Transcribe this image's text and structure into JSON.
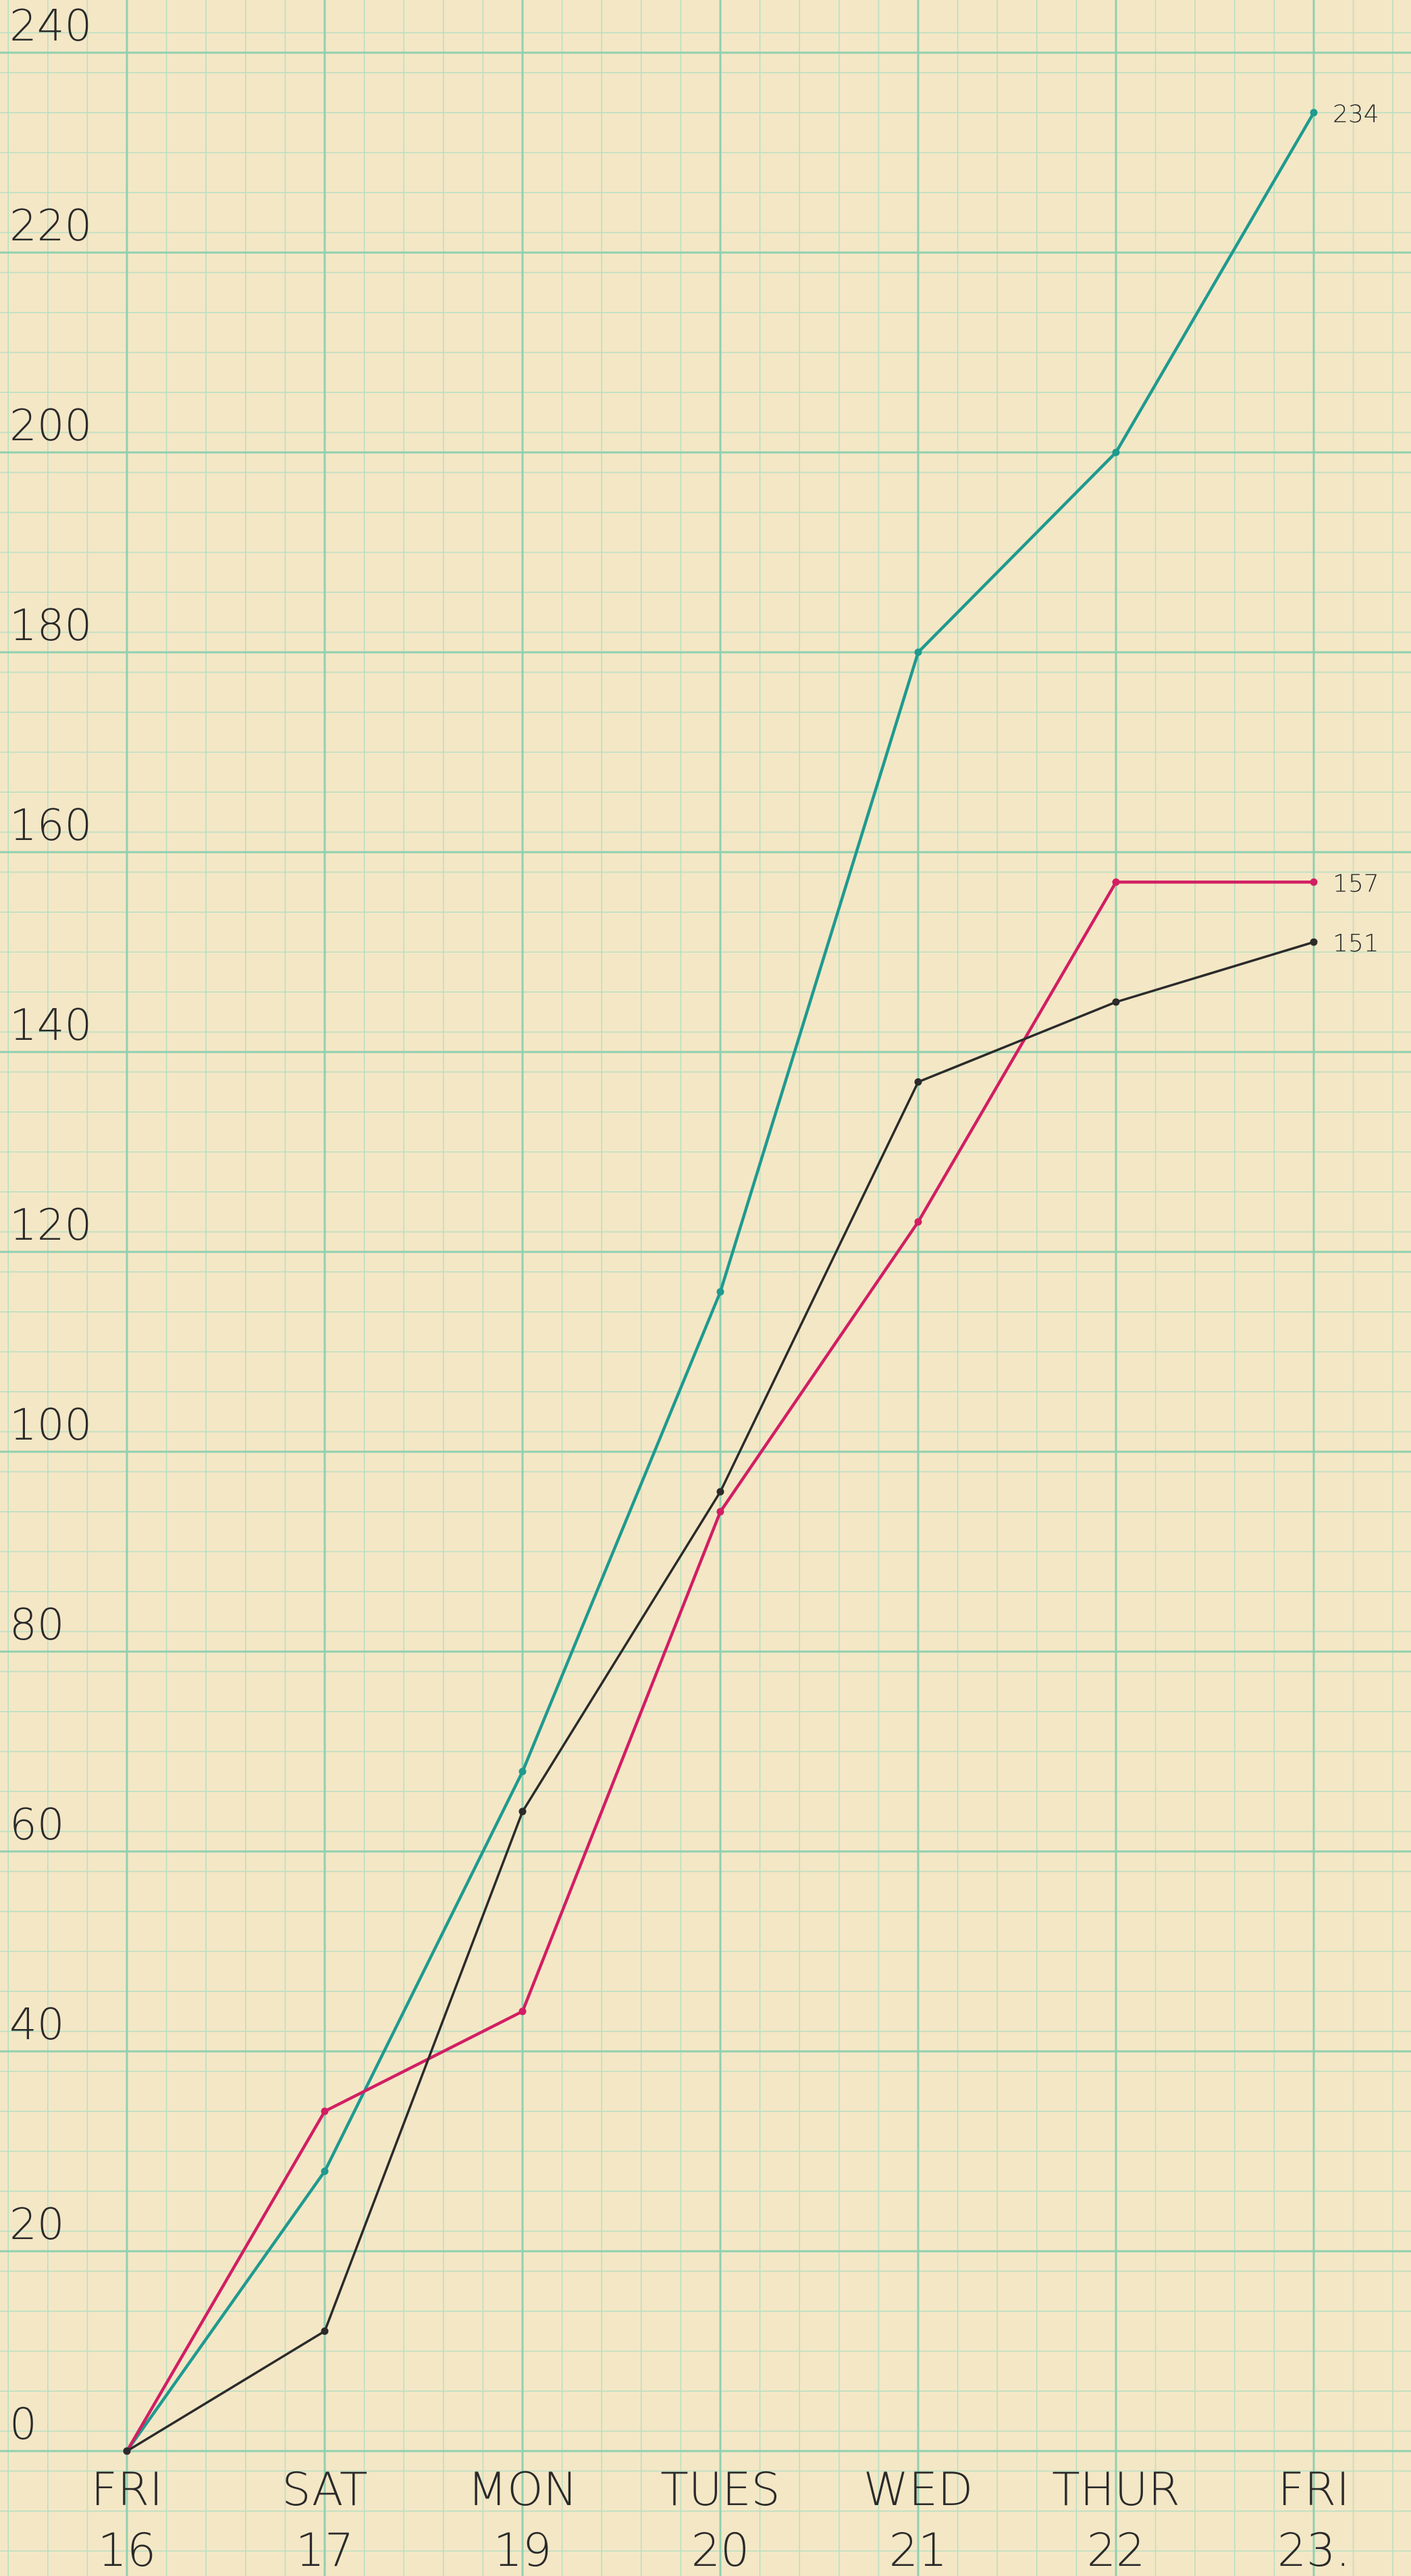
{
  "chart_data": {
    "type": "line",
    "title": "",
    "xlabel": "",
    "ylabel": "",
    "ylim": [
      0,
      240
    ],
    "yticks": [
      0,
      20,
      40,
      60,
      80,
      100,
      120,
      140,
      160,
      180,
      200,
      220,
      240
    ],
    "x_labels": [
      {
        "day": "FRI",
        "date": "16"
      },
      {
        "day": "SAT",
        "date": "17"
      },
      {
        "day": "MON",
        "date": "19"
      },
      {
        "day": "TUES",
        "date": "20"
      },
      {
        "day": "WED",
        "date": "21"
      },
      {
        "day": "THUR",
        "date": "22"
      },
      {
        "day": "FRI",
        "date": "23."
      }
    ],
    "grid": true,
    "series": [
      {
        "color": "#1f9a8f",
        "values": [
          0,
          28,
          68,
          116,
          180,
          200,
          234
        ],
        "end_label": "234"
      },
      {
        "color": "#d21e63",
        "values": [
          0,
          34,
          44,
          94,
          123,
          157,
          157
        ],
        "end_label": "157"
      },
      {
        "color": "#2b2b2b",
        "values": [
          0,
          12,
          64,
          96,
          137,
          145,
          151
        ],
        "end_label": "151"
      }
    ],
    "colors": {
      "paper": "#f4e7c6",
      "major_grid": "#8fd0b0",
      "minor_grid": "#b9dfc2",
      "ink": "#2a2a2a"
    }
  }
}
